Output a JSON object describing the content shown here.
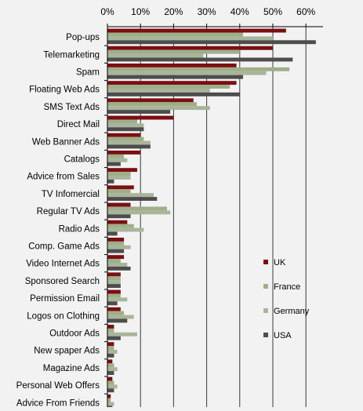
{
  "chart_data": {
    "type": "bar",
    "orientation": "horizontal",
    "xlim": [
      0,
      65
    ],
    "x_ticks": [
      "0%",
      "10%",
      "20%",
      "30%",
      "40%",
      "50%",
      "60%"
    ],
    "x_tick_values": [
      0,
      10,
      20,
      30,
      40,
      50,
      60
    ],
    "axis_position": "top",
    "grid": true,
    "legend_position": "right",
    "categories": [
      "Pop-ups",
      "Telemarketing",
      "Spam",
      "Floating Web Ads",
      "SMS Text Ads",
      "Direct Mail",
      "Web Banner Ads",
      "Catalogs",
      "Advice from Sales",
      "TV Infomercial",
      "Regular TV Ads",
      "Radio Ads",
      "Comp. Game Ads",
      "Video Internet Ads",
      "Sponsored Search",
      "Permission Email",
      "Logos on Clothing",
      "Outdoor Ads",
      "Newspaper Ads",
      "Magazine Ads",
      "Personal Web Offers",
      "Advice From Friends"
    ],
    "category_labels_shown": [
      "Pop-ups",
      "Telemarketing",
      "Spam",
      "Floating Web Ads",
      "SMS Text Ads",
      "Direct Mail",
      "Web Banner Ads",
      "Catalogs",
      "Advice from Sales",
      "TV Infomercial",
      "Regular TV Ads",
      "Radio Ads",
      "Comp. Game Ads",
      "Video Internet Ads",
      "Sponsored Search",
      "Permission Email",
      "Logos on Clothing",
      "Outdoor Ads",
      "New spaper Ads",
      "Magazine Ads",
      "Personal Web Offers",
      "Advice From Friends"
    ],
    "series": [
      {
        "name": "UK",
        "color": "#7b0f12",
        "values": [
          54,
          50,
          39,
          39,
          26,
          20,
          10,
          10,
          9,
          8,
          7,
          6,
          5,
          5,
          4,
          4,
          4,
          2,
          2,
          1.5,
          1.5,
          1
        ]
      },
      {
        "name": "France",
        "color": "#9fae8a",
        "values": [
          41,
          40,
          55,
          37,
          27,
          9,
          11,
          5,
          7,
          7,
          18,
          8,
          5,
          4,
          4,
          4,
          5,
          2,
          2,
          2,
          2,
          1
        ]
      },
      {
        "name": "Germany",
        "color": "#a8b59a",
        "values": [
          50,
          29,
          48,
          31,
          31,
          11,
          13,
          6,
          7,
          14,
          19,
          11,
          7,
          6,
          4,
          6,
          8,
          9,
          3,
          3,
          3,
          2
        ]
      },
      {
        "name": "USA",
        "color": "#4d4d4d",
        "values": [
          63,
          56,
          41,
          40,
          19,
          11,
          13,
          4,
          2,
          15,
          7,
          3,
          5,
          7,
          4,
          3,
          6,
          4,
          2,
          2,
          2,
          1.5
        ]
      }
    ]
  }
}
